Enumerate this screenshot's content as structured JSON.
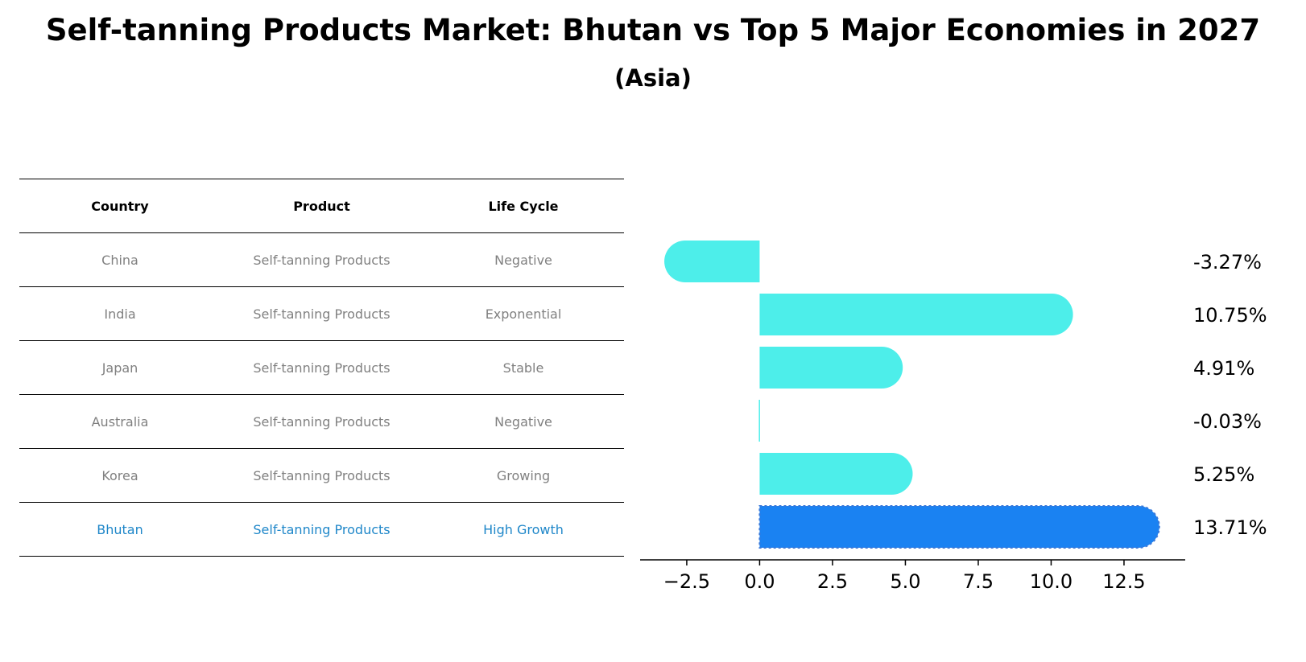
{
  "chart_data": {
    "type": "bar",
    "orientation": "horizontal",
    "title": "Self-tanning Products Market: Bhutan vs Top 5 Major Economies in 2027",
    "subtitle": "(Asia)",
    "categories": [
      "China",
      "India",
      "Japan",
      "Australia",
      "Korea",
      "Bhutan"
    ],
    "values": [
      -3.27,
      10.75,
      4.91,
      -0.03,
      5.25,
      13.71
    ],
    "value_labels": [
      "-3.27%",
      "10.75%",
      "4.91%",
      "-0.03%",
      "5.25%",
      "13.71%"
    ],
    "highlight": "Bhutan",
    "xlim": [
      -4.1,
      14.6
    ],
    "xticks": [
      -2.5,
      0.0,
      2.5,
      5.0,
      7.5,
      10.0,
      12.5
    ],
    "xtick_labels": [
      "−2.5",
      "0.0",
      "2.5",
      "5.0",
      "7.5",
      "10.0",
      "12.5"
    ],
    "xlabel": "",
    "ylabel": "",
    "grid": false,
    "colors": {
      "default": "#4deeea",
      "highlight": "#1a82f2"
    }
  },
  "table": {
    "headers": [
      "Country",
      "Product",
      "Life Cycle"
    ],
    "rows": [
      [
        "China",
        "Self-tanning Products",
        "Negative"
      ],
      [
        "India",
        "Self-tanning Products",
        "Exponential"
      ],
      [
        "Japan",
        "Self-tanning Products",
        "Stable"
      ],
      [
        "Australia",
        "Self-tanning Products",
        "Negative"
      ],
      [
        "Korea",
        "Self-tanning Products",
        "Growing"
      ],
      [
        "Bhutan",
        "Self-tanning Products",
        "High Growth"
      ]
    ]
  }
}
